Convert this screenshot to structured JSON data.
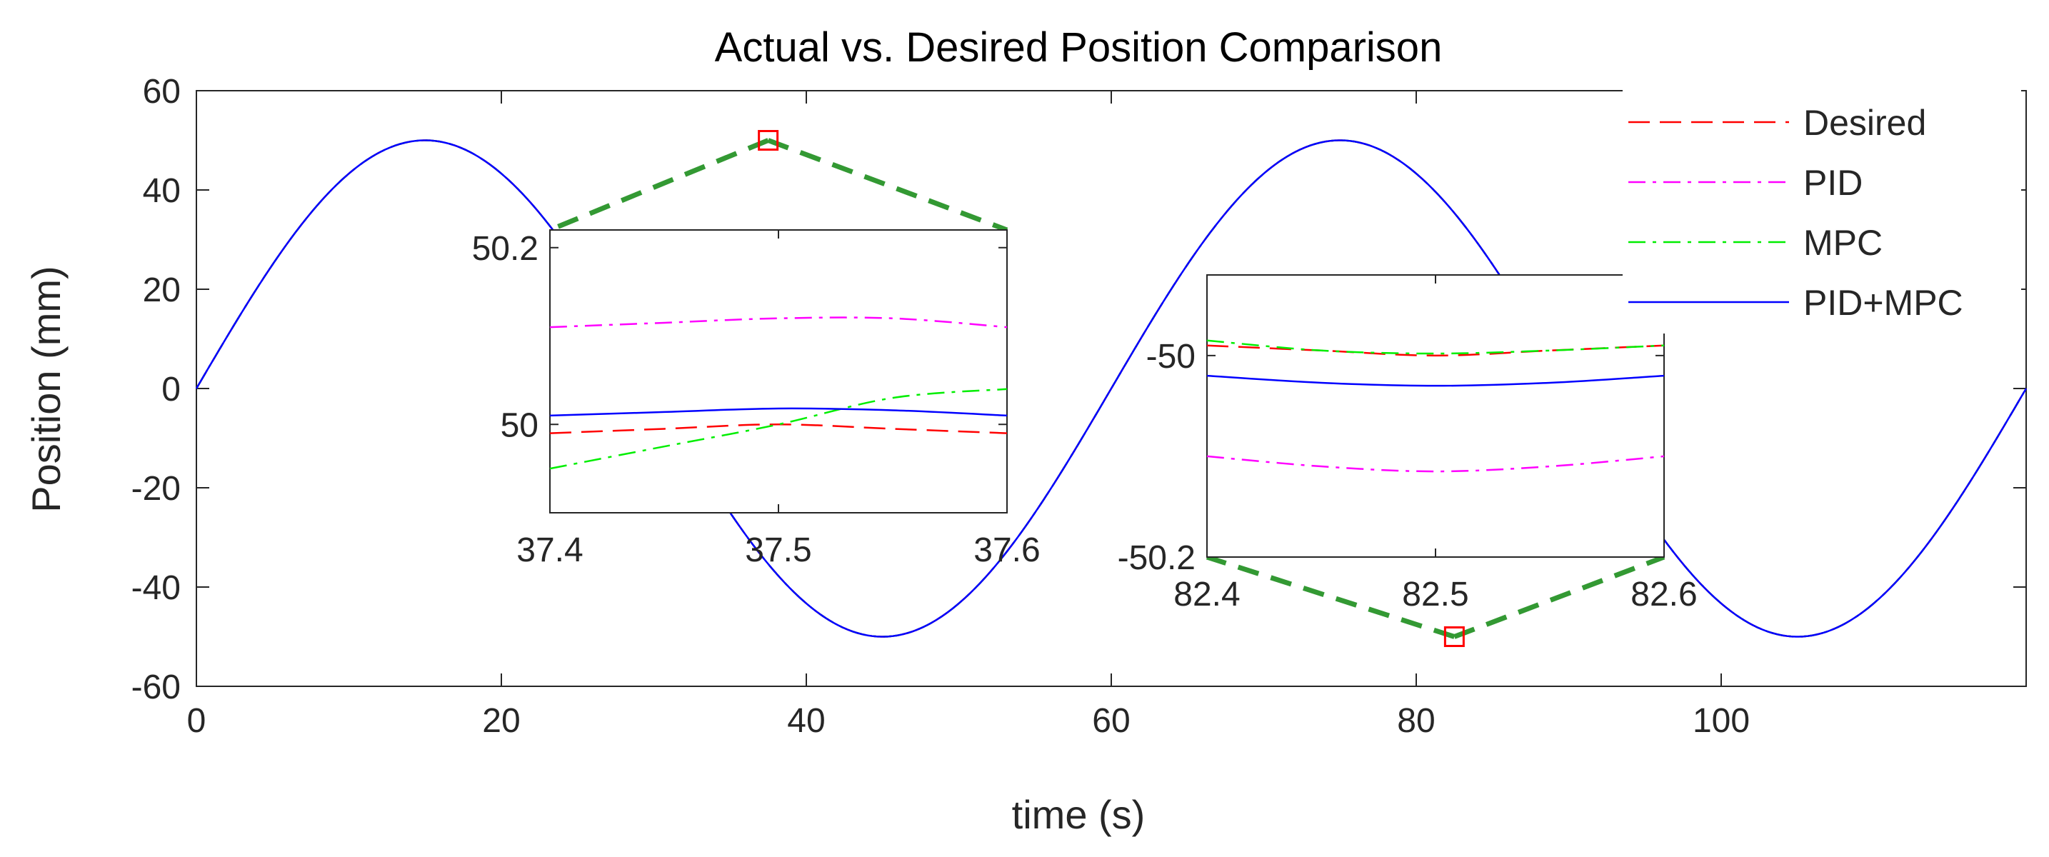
{
  "chart_data": {
    "type": "line",
    "title": "Actual vs. Desired Position Comparison",
    "xlabel": "time (s)",
    "ylabel": "Position (mm)",
    "xlim": [
      0,
      120
    ],
    "ylim": [
      -60,
      60
    ],
    "xticks": [
      0,
      20,
      40,
      60,
      80,
      100
    ],
    "xtick_labels": [
      "0",
      "20",
      "40",
      "60",
      "80",
      "100"
    ],
    "yticks": [
      60,
      40,
      20,
      0,
      -20,
      -40,
      -60
    ],
    "ytick_labels": [
      "60",
      "40",
      "20",
      "0",
      "-20",
      "-40",
      "-60"
    ],
    "grid": false,
    "legend_position": "top-right",
    "signal": {
      "amplitude": 50,
      "period": 60,
      "description": "position = 50·sin(2π·t/60)"
    },
    "series": [
      {
        "name": "Desired",
        "color": "#ff0000",
        "style": "dashed"
      },
      {
        "name": "PID",
        "color": "#ff00ff",
        "style": "dashdot"
      },
      {
        "name": "MPC",
        "color": "#00ee00",
        "style": "dashdot"
      },
      {
        "name": "PID+MPC",
        "color": "#0000ff",
        "style": "solid"
      }
    ],
    "insets": [
      {
        "name": "zoom-peak",
        "xlim": [
          37.4,
          37.6
        ],
        "ylim": [
          49.9,
          50.22
        ],
        "xticks": [
          37.4,
          37.5,
          37.6
        ],
        "xtick_labels": [
          "37.4",
          "37.5",
          "37.6"
        ],
        "yticks": [
          50.2,
          50
        ],
        "ytick_labels": [
          "50.2",
          "50"
        ],
        "x": [
          37.4,
          37.45,
          37.5,
          37.55,
          37.6
        ],
        "values": {
          "Desired": [
            49.99,
            49.995,
            50.0,
            49.995,
            49.99
          ],
          "PID": [
            50.11,
            50.115,
            50.12,
            50.12,
            50.11
          ],
          "MPC": [
            49.95,
            49.975,
            50.0,
            50.03,
            50.04
          ],
          "PID+MPC": [
            50.01,
            50.014,
            50.018,
            50.016,
            50.01
          ]
        },
        "zoom_center": [
          37.5,
          50
        ],
        "connector_color": "#339933"
      },
      {
        "name": "zoom-trough",
        "xlim": [
          82.4,
          82.6
        ],
        "ylim": [
          -50.2,
          -49.92
        ],
        "xticks": [
          82.4,
          82.5,
          82.6
        ],
        "xtick_labels": [
          "82.4",
          "82.5",
          "82.6"
        ],
        "yticks": [
          -50,
          -50.2
        ],
        "ytick_labels": [
          "-50",
          "-50.2"
        ],
        "x": [
          82.4,
          82.45,
          82.5,
          82.55,
          82.6
        ],
        "values": {
          "Desired": [
            -49.99,
            -49.995,
            -50.0,
            -49.995,
            -49.99
          ],
          "PID": [
            -50.1,
            -50.11,
            -50.115,
            -50.11,
            -50.1
          ],
          "MPC": [
            -49.985,
            -49.995,
            -49.998,
            -49.995,
            -49.99
          ],
          "PID+MPC": [
            -50.02,
            -50.027,
            -50.03,
            -50.027,
            -50.02
          ]
        },
        "zoom_center": [
          82.5,
          -50
        ],
        "connector_color": "#339933"
      }
    ]
  }
}
